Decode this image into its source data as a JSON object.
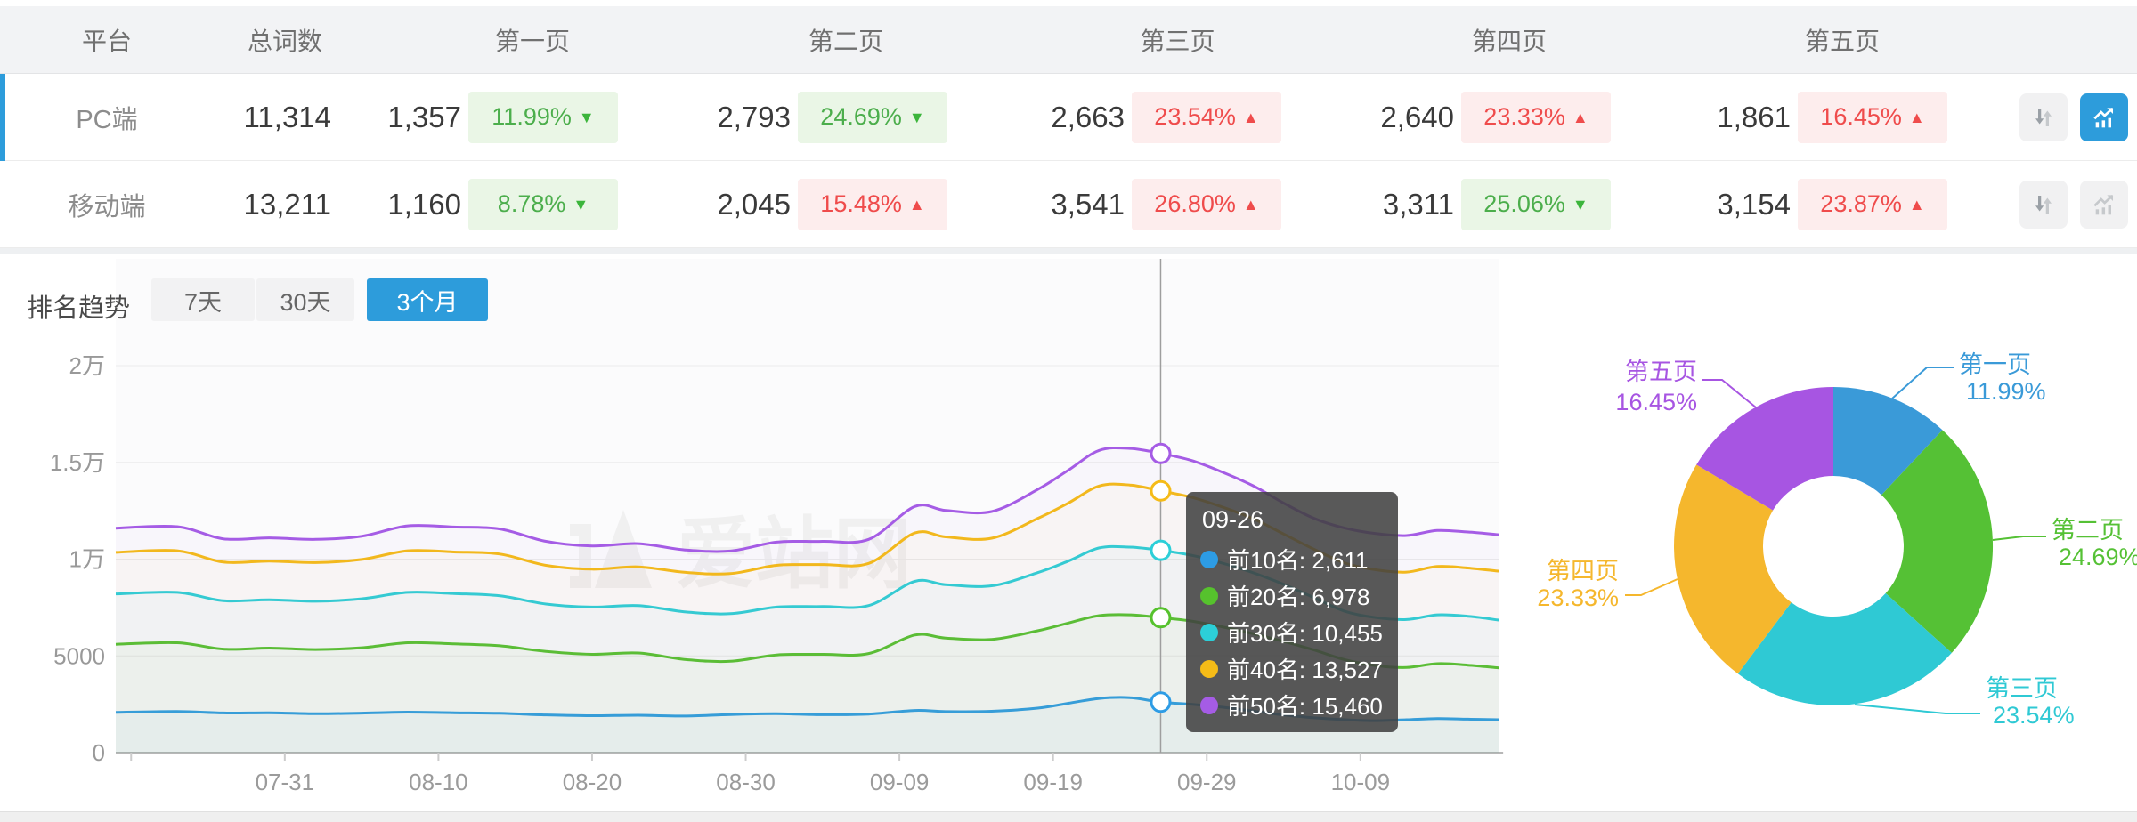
{
  "table": {
    "columns": [
      "平台",
      "总词数",
      "第一页",
      "第二页",
      "第三页",
      "第四页",
      "第五页"
    ],
    "rows": [
      {
        "platform": "PC端",
        "total": "11,314",
        "selected": true,
        "pages": [
          {
            "value": "1,357",
            "pct": "11.99%",
            "arrow": "▼",
            "trend": "down"
          },
          {
            "value": "2,793",
            "pct": "24.69%",
            "arrow": "▼",
            "trend": "down"
          },
          {
            "value": "2,663",
            "pct": "23.54%",
            "arrow": "▲",
            "trend": "up"
          },
          {
            "value": "2,640",
            "pct": "23.33%",
            "arrow": "▲",
            "trend": "up"
          },
          {
            "value": "1,861",
            "pct": "16.45%",
            "arrow": "▲",
            "trend": "up"
          }
        ]
      },
      {
        "platform": "移动端",
        "total": "13,211",
        "selected": false,
        "pages": [
          {
            "value": "1,160",
            "pct": "8.78%",
            "arrow": "▼",
            "trend": "down"
          },
          {
            "value": "2,045",
            "pct": "15.48%",
            "arrow": "▲",
            "trend": "up"
          },
          {
            "value": "3,541",
            "pct": "26.80%",
            "arrow": "▲",
            "trend": "up"
          },
          {
            "value": "3,311",
            "pct": "25.06%",
            "arrow": "▼",
            "trend": "down"
          },
          {
            "value": "3,154",
            "pct": "23.87%",
            "arrow": "▲",
            "trend": "up"
          }
        ]
      }
    ]
  },
  "trend": {
    "title": "排名趋势",
    "ranges": [
      {
        "label": "7天",
        "active": false
      },
      {
        "label": "30天",
        "active": false
      },
      {
        "label": "3个月",
        "active": true
      }
    ]
  },
  "tooltip": {
    "date": "09-26",
    "rows": [
      {
        "name": "前10名",
        "value": "2,611"
      },
      {
        "name": "前20名",
        "value": "6,978"
      },
      {
        "name": "前30名",
        "value": "10,455"
      },
      {
        "name": "前40名",
        "value": "13,527"
      },
      {
        "name": "前50名",
        "value": "15,460"
      }
    ]
  },
  "watermark": "爱站网",
  "ui_colors": {
    "accent_blue": "#2d9cdb",
    "badge_green": "#4cae4c",
    "badge_red": "#ef4c4c"
  },
  "chart_data": [
    {
      "type": "line",
      "title": "排名趋势",
      "period": "3个月",
      "x_axis": {
        "start_date": "07-20",
        "end_date": "10-18",
        "tick_labels": [
          "07-31",
          "08-10",
          "08-20",
          "08-30",
          "09-09",
          "09-19",
          "09-29",
          "10-09"
        ],
        "tick_days": [
          11,
          21,
          31,
          41,
          51,
          61,
          71,
          81
        ]
      },
      "y_axis": {
        "min": 0,
        "max": 20000,
        "tick_values": [
          0,
          5000,
          10000,
          15000,
          20000
        ],
        "tick_labels": [
          "0",
          "5000",
          "1万",
          "1.5万",
          "2万"
        ]
      },
      "grid": true,
      "highlight": {
        "date": "09-26",
        "day": 68
      },
      "series": [
        {
          "name": "前10名",
          "color": "#2d9ce5",
          "highlight_value": 2611,
          "points": [
            [
              0,
              2080
            ],
            [
              4,
              2130
            ],
            [
              7,
              2050
            ],
            [
              10,
              2060
            ],
            [
              13,
              2010
            ],
            [
              16,
              2040
            ],
            [
              19,
              2090
            ],
            [
              22,
              2060
            ],
            [
              25,
              2030
            ],
            [
              28,
              1950
            ],
            [
              31,
              1910
            ],
            [
              34,
              1930
            ],
            [
              37,
              1890
            ],
            [
              40,
              1970
            ],
            [
              43,
              2010
            ],
            [
              46,
              1960
            ],
            [
              49,
              1990
            ],
            [
              52,
              2180
            ],
            [
              54,
              2120
            ],
            [
              57,
              2140
            ],
            [
              60,
              2300
            ],
            [
              62,
              2550
            ],
            [
              64,
              2800
            ],
            [
              66,
              2840
            ],
            [
              68,
              2611
            ],
            [
              70,
              2500
            ],
            [
              72,
              2350
            ],
            [
              74,
              2150
            ],
            [
              76,
              1950
            ],
            [
              78,
              1800
            ],
            [
              80,
              1700
            ],
            [
              82,
              1650
            ],
            [
              84,
              1700
            ],
            [
              86,
              1760
            ],
            [
              88,
              1730
            ],
            [
              90,
              1700
            ]
          ]
        },
        {
          "name": "前20名",
          "color": "#56c22d",
          "highlight_value": 6978,
          "points": [
            [
              0,
              5600
            ],
            [
              4,
              5680
            ],
            [
              7,
              5350
            ],
            [
              10,
              5400
            ],
            [
              13,
              5330
            ],
            [
              16,
              5420
            ],
            [
              19,
              5680
            ],
            [
              22,
              5620
            ],
            [
              25,
              5520
            ],
            [
              28,
              5230
            ],
            [
              31,
              5080
            ],
            [
              34,
              5150
            ],
            [
              37,
              4820
            ],
            [
              40,
              4720
            ],
            [
              43,
              5050
            ],
            [
              46,
              5080
            ],
            [
              49,
              5120
            ],
            [
              52,
              6080
            ],
            [
              54,
              5920
            ],
            [
              57,
              5850
            ],
            [
              60,
              6300
            ],
            [
              62,
              6700
            ],
            [
              64,
              7080
            ],
            [
              66,
              7120
            ],
            [
              68,
              6978
            ],
            [
              70,
              6800
            ],
            [
              72,
              6500
            ],
            [
              74,
              6150
            ],
            [
              76,
              5750
            ],
            [
              78,
              5300
            ],
            [
              80,
              4800
            ],
            [
              82,
              4500
            ],
            [
              84,
              4400
            ],
            [
              86,
              4600
            ],
            [
              88,
              4520
            ],
            [
              90,
              4380
            ]
          ]
        },
        {
          "name": "前30名",
          "color": "#2ccfd8",
          "highlight_value": 10455,
          "points": [
            [
              0,
              8200
            ],
            [
              4,
              8280
            ],
            [
              7,
              7850
            ],
            [
              10,
              7900
            ],
            [
              13,
              7820
            ],
            [
              16,
              7950
            ],
            [
              19,
              8280
            ],
            [
              22,
              8220
            ],
            [
              25,
              8100
            ],
            [
              28,
              7680
            ],
            [
              31,
              7520
            ],
            [
              34,
              7600
            ],
            [
              37,
              7280
            ],
            [
              40,
              7180
            ],
            [
              43,
              7520
            ],
            [
              46,
              7550
            ],
            [
              49,
              7600
            ],
            [
              52,
              8850
            ],
            [
              54,
              8680
            ],
            [
              57,
              8620
            ],
            [
              60,
              9300
            ],
            [
              62,
              9900
            ],
            [
              64,
              10580
            ],
            [
              66,
              10620
            ],
            [
              68,
              10455
            ],
            [
              70,
              10200
            ],
            [
              72,
              9800
            ],
            [
              74,
              9300
            ],
            [
              76,
              8700
            ],
            [
              78,
              8000
            ],
            [
              80,
              7300
            ],
            [
              82,
              6980
            ],
            [
              84,
              6880
            ],
            [
              86,
              7120
            ],
            [
              88,
              7050
            ],
            [
              90,
              6850
            ]
          ]
        },
        {
          "name": "前40名",
          "color": "#f5bb17",
          "highlight_value": 13527,
          "points": [
            [
              0,
              10350
            ],
            [
              4,
              10430
            ],
            [
              7,
              9850
            ],
            [
              10,
              9900
            ],
            [
              13,
              9820
            ],
            [
              16,
              9980
            ],
            [
              19,
              10430
            ],
            [
              22,
              10370
            ],
            [
              25,
              10260
            ],
            [
              28,
              9680
            ],
            [
              31,
              9480
            ],
            [
              34,
              9600
            ],
            [
              37,
              9320
            ],
            [
              40,
              9250
            ],
            [
              43,
              9680
            ],
            [
              46,
              9720
            ],
            [
              49,
              9780
            ],
            [
              52,
              11350
            ],
            [
              54,
              11150
            ],
            [
              57,
              11080
            ],
            [
              60,
              12100
            ],
            [
              62,
              12900
            ],
            [
              64,
              13780
            ],
            [
              66,
              13830
            ],
            [
              68,
              13527
            ],
            [
              70,
              13200
            ],
            [
              72,
              12700
            ],
            [
              74,
              12100
            ],
            [
              76,
              11300
            ],
            [
              78,
              10500
            ],
            [
              80,
              9800
            ],
            [
              82,
              9450
            ],
            [
              84,
              9330
            ],
            [
              86,
              9620
            ],
            [
              88,
              9540
            ],
            [
              90,
              9380
            ]
          ]
        },
        {
          "name": "前50名",
          "color": "#a55ce5",
          "highlight_value": 15460,
          "points": [
            [
              0,
              11600
            ],
            [
              4,
              11680
            ],
            [
              7,
              11050
            ],
            [
              10,
              11100
            ],
            [
              13,
              11020
            ],
            [
              16,
              11180
            ],
            [
              19,
              11720
            ],
            [
              22,
              11660
            ],
            [
              25,
              11560
            ],
            [
              28,
              10920
            ],
            [
              31,
              10680
            ],
            [
              34,
              10800
            ],
            [
              37,
              10480
            ],
            [
              40,
              10420
            ],
            [
              43,
              10880
            ],
            [
              46,
              10920
            ],
            [
              49,
              11020
            ],
            [
              52,
              12720
            ],
            [
              54,
              12520
            ],
            [
              57,
              12460
            ],
            [
              60,
              13600
            ],
            [
              62,
              14600
            ],
            [
              64,
              15620
            ],
            [
              66,
              15720
            ],
            [
              68,
              15460
            ],
            [
              70,
              15100
            ],
            [
              72,
              14500
            ],
            [
              74,
              13800
            ],
            [
              76,
              12900
            ],
            [
              78,
              12100
            ],
            [
              80,
              11600
            ],
            [
              82,
              11320
            ],
            [
              84,
              11220
            ],
            [
              86,
              11480
            ],
            [
              88,
              11400
            ],
            [
              90,
              11260
            ]
          ]
        }
      ]
    },
    {
      "type": "pie",
      "donut": true,
      "labels": [
        "第一页",
        "第二页",
        "第三页",
        "第四页",
        "第五页"
      ],
      "values": [
        11.99,
        24.69,
        23.54,
        23.33,
        16.45
      ],
      "unit": "%",
      "colors": [
        "#3a9ad8",
        "#55c135",
        "#2fc9d4",
        "#f5b72d",
        "#a755e2"
      ],
      "legend_position": "callout-labels"
    }
  ]
}
